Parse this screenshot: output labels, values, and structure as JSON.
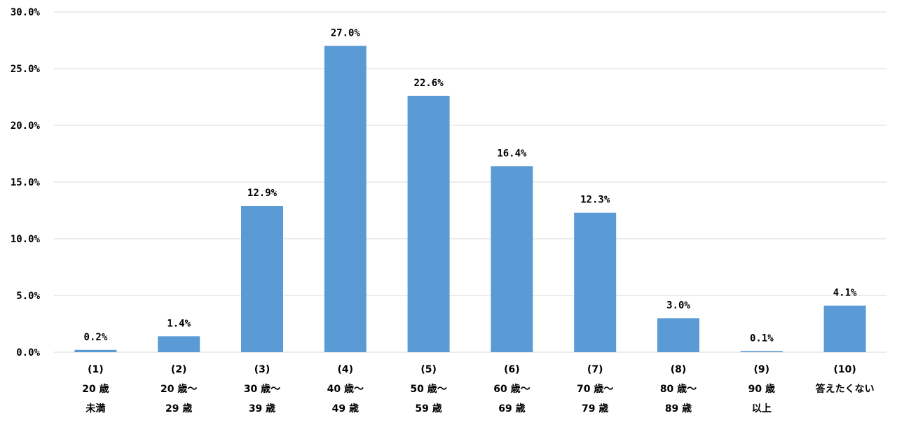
{
  "chart_data": {
    "type": "bar",
    "categories": [
      [
        "(1)",
        "20 歳",
        "未満"
      ],
      [
        "(2)",
        "20 歳～",
        "29 歳"
      ],
      [
        "(3)",
        "30 歳～",
        "39 歳"
      ],
      [
        "(4)",
        "40 歳～",
        "49 歳"
      ],
      [
        "(5)",
        "50 歳～",
        "59 歳"
      ],
      [
        "(6)",
        "60 歳～",
        "69 歳"
      ],
      [
        "(7)",
        "70 歳～",
        "79 歳"
      ],
      [
        "(8)",
        "80 歳～",
        "89 歳"
      ],
      [
        "(9)",
        "90 歳",
        "以上"
      ],
      [
        "(10)",
        "答えたくない"
      ]
    ],
    "values": [
      0.2,
      1.4,
      12.9,
      27.0,
      22.6,
      16.4,
      12.3,
      3.0,
      0.1,
      4.1
    ],
    "value_labels": [
      "0.2%",
      "1.4%",
      "12.9%",
      "27.0%",
      "22.6%",
      "16.4%",
      "12.3%",
      "3.0%",
      "0.1%",
      "4.1%"
    ],
    "yticks": [
      0,
      5,
      10,
      15,
      20,
      25,
      30
    ],
    "ytick_labels": [
      "0.0%",
      "5.0%",
      "10.0%",
      "15.0%",
      "20.0%",
      "25.0%",
      "30.0%"
    ],
    "ylim": [
      0,
      30
    ],
    "title": "",
    "xlabel": "",
    "ylabel": "",
    "grid": true,
    "bar_color": "#5b9bd5",
    "grid_color": "#d9d9d9"
  }
}
